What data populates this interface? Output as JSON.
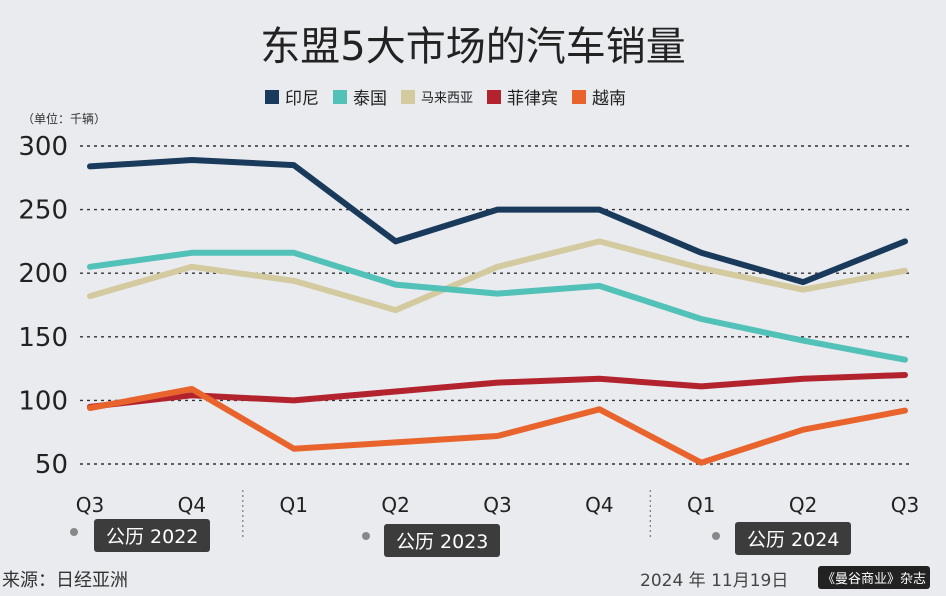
{
  "title": "东盟5大市场的汽车销量",
  "unit_label": "（单位：千辆）",
  "legend": [
    {
      "label": "印尼",
      "color": "#1a3a5c"
    },
    {
      "label": "泰国",
      "color": "#52c1b8"
    },
    {
      "label": "马来西亚",
      "color": "#d3caa0"
    },
    {
      "label": "菲律宾",
      "color": "#b2232d"
    },
    {
      "label": "越南",
      "color": "#e8642c"
    }
  ],
  "year_labels": [
    "公历 2022",
    "公历 2023",
    "公历 2024"
  ],
  "source": "来源：日经亚洲",
  "date": "2024 年 11月19日",
  "credit": "《曼谷商业》杂志",
  "chart_data": {
    "type": "line",
    "title": "东盟5大市场的汽车销量",
    "ylabel": "（单位：千辆）",
    "ylim": [
      50,
      300
    ],
    "yticks": [
      50,
      100,
      150,
      200,
      250,
      300
    ],
    "grid": true,
    "legend_position": "top",
    "categories": [
      "Q3",
      "Q4",
      "Q1",
      "Q2",
      "Q3",
      "Q4",
      "Q1",
      "Q2",
      "Q3"
    ],
    "year_groups": [
      {
        "label": "公历 2022",
        "start": 0,
        "end": 1
      },
      {
        "label": "公历 2023",
        "start": 2,
        "end": 5
      },
      {
        "label": "公历 2024",
        "start": 6,
        "end": 8
      }
    ],
    "series": [
      {
        "name": "印尼",
        "color": "#1a3a5c",
        "values": [
          284,
          289,
          285,
          225,
          250,
          250,
          216,
          193,
          225
        ]
      },
      {
        "name": "泰国",
        "color": "#52c1b8",
        "values": [
          205,
          216,
          216,
          191,
          184,
          190,
          164,
          147,
          132
        ]
      },
      {
        "name": "马来西亚",
        "color": "#d3caa0",
        "values": [
          182,
          205,
          194,
          171,
          205,
          225,
          204,
          187,
          202
        ]
      },
      {
        "name": "菲律宾",
        "color": "#b2232d",
        "values": [
          95,
          104,
          100,
          107,
          114,
          117,
          111,
          117,
          120
        ]
      },
      {
        "name": "越南",
        "color": "#e8642c",
        "values": [
          94,
          109,
          62,
          67,
          72,
          93,
          51,
          77,
          92
        ]
      }
    ]
  }
}
